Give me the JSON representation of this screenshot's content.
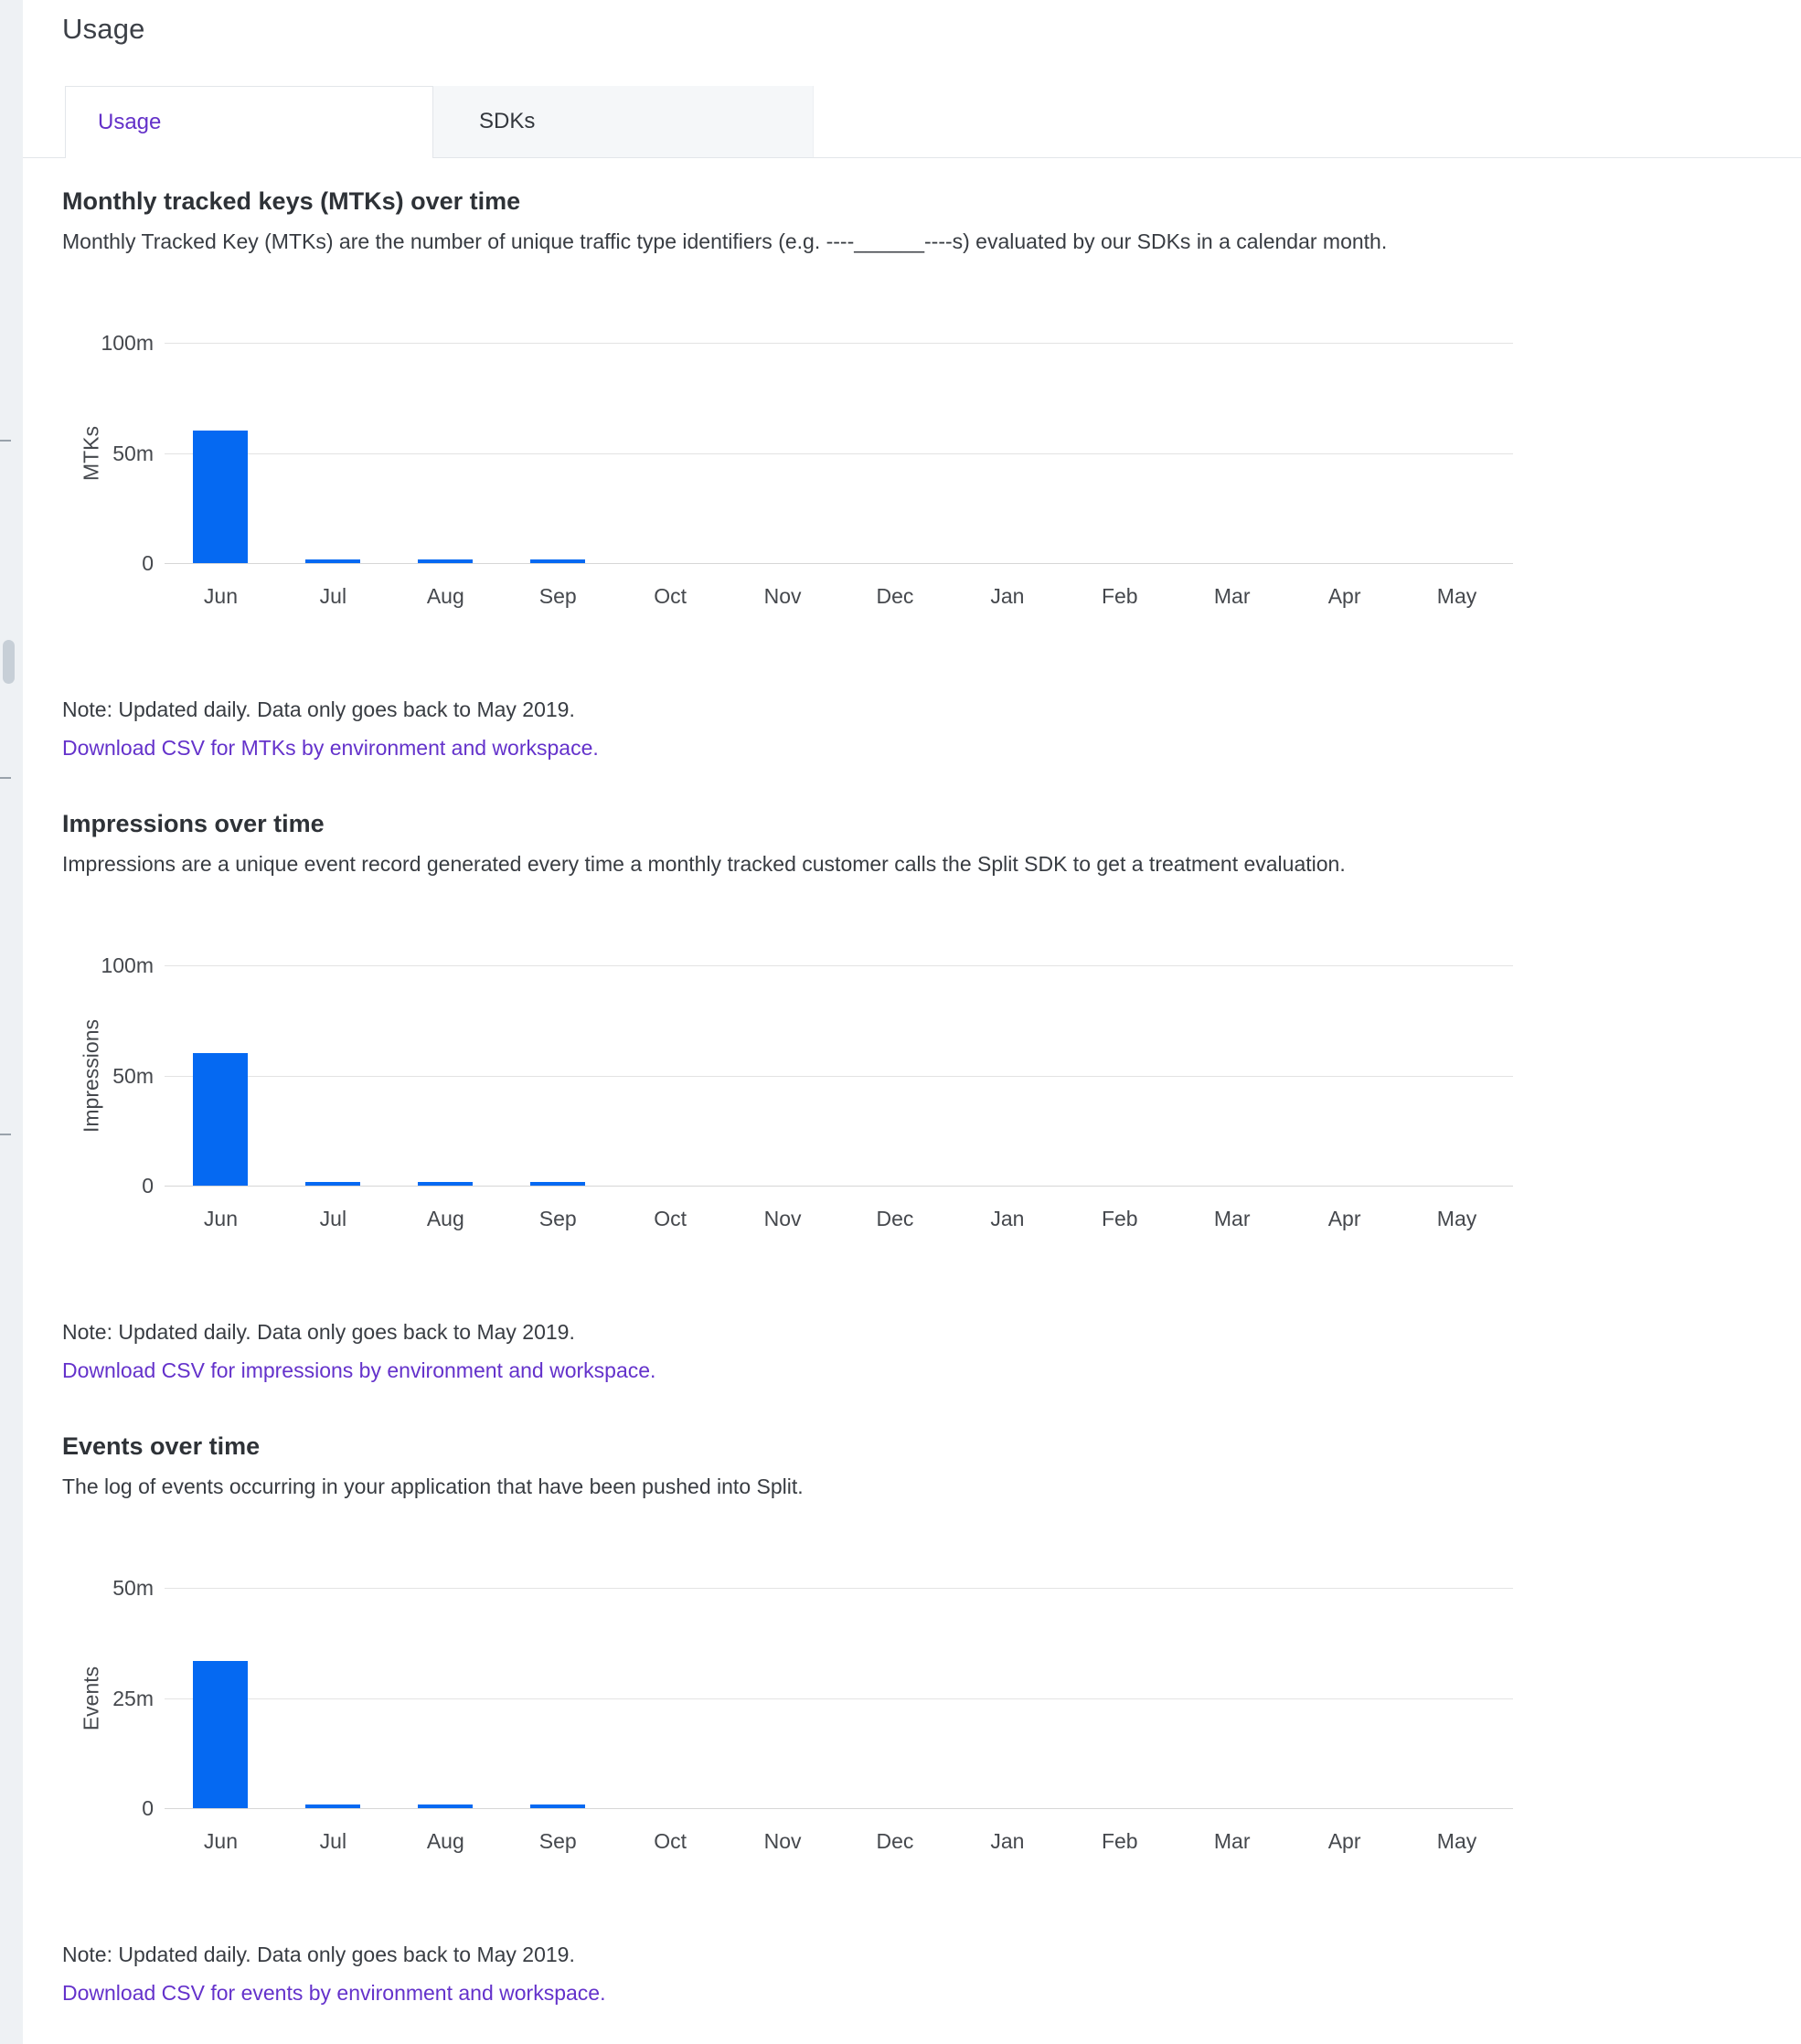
{
  "page": {
    "title": "Usage"
  },
  "tabs": [
    {
      "label": "Usage",
      "active": true
    },
    {
      "label": "SDKs",
      "active": false
    }
  ],
  "colors": {
    "bar_blue": "#0569f2",
    "accent_purple": "#6432cb",
    "active_tab_text": "#6431c9"
  },
  "sections": [
    {
      "heading": "Monthly tracked keys (MTKs) over time",
      "description": "Monthly Tracked Key (MTKs) are the number of unique traffic type identifiers (e.g. ----______----s) evaluated by our SDKs in a calendar month.",
      "note": "Note: Updated daily. Data only goes back to May 2019.",
      "link": "Download CSV for MTKs by environment and workspace."
    },
    {
      "heading": "Impressions over time",
      "description": "Impressions are a unique event record generated every time a monthly tracked customer calls the Split SDK to get a treatment evaluation.",
      "note": "Note: Updated daily. Data only goes back to May 2019.",
      "link": "Download CSV for impressions by environment and workspace."
    },
    {
      "heading": "Events over time",
      "description": "The log of events occurring in your application that have been pushed into Split.",
      "note": "Note: Updated daily. Data only goes back to May 2019.",
      "link": "Download CSV for events by environment and workspace."
    }
  ],
  "chart_data": [
    {
      "type": "bar",
      "title": "Monthly tracked keys (MTKs) over time",
      "ylabel": "MTKs",
      "xlabel": "",
      "units": "millions",
      "ymax": 100,
      "ylim": [
        0,
        100
      ],
      "grid": true,
      "yticks": [
        {
          "label": "100m",
          "value": 100
        },
        {
          "label": "50m",
          "value": 50
        },
        {
          "label": "0",
          "value": 0
        }
      ],
      "categories": [
        "Jun",
        "Jul",
        "Aug",
        "Sep",
        "Oct",
        "Nov",
        "Dec",
        "Jan",
        "Feb",
        "Mar",
        "Apr",
        "May"
      ],
      "values": [
        60,
        1.5,
        1.5,
        1.5,
        0,
        0,
        0,
        0,
        0,
        0,
        0,
        0
      ]
    },
    {
      "type": "bar",
      "title": "Impressions over time",
      "ylabel": "Impressions",
      "xlabel": "",
      "units": "millions",
      "ymax": 100,
      "ylim": [
        0,
        100
      ],
      "grid": true,
      "yticks": [
        {
          "label": "100m",
          "value": 100
        },
        {
          "label": "50m",
          "value": 50
        },
        {
          "label": "0",
          "value": 0
        }
      ],
      "categories": [
        "Jun",
        "Jul",
        "Aug",
        "Sep",
        "Oct",
        "Nov",
        "Dec",
        "Jan",
        "Feb",
        "Mar",
        "Apr",
        "May"
      ],
      "values": [
        60,
        1.5,
        1.5,
        1.5,
        0,
        0,
        0,
        0,
        0,
        0,
        0,
        0
      ]
    },
    {
      "type": "bar",
      "title": "Events over time",
      "ylabel": "Events",
      "xlabel": "",
      "units": "millions",
      "ymax": 50,
      "ylim": [
        0,
        50
      ],
      "grid": true,
      "yticks": [
        {
          "label": "50m",
          "value": 50
        },
        {
          "label": "25m",
          "value": 25
        },
        {
          "label": "0",
          "value": 0
        }
      ],
      "categories": [
        "Jun",
        "Jul",
        "Aug",
        "Sep",
        "Oct",
        "Nov",
        "Dec",
        "Jan",
        "Feb",
        "Mar",
        "Apr",
        "May"
      ],
      "values": [
        33.5,
        0.7,
        0.7,
        0.7,
        0,
        0,
        0,
        0,
        0,
        0,
        0,
        0
      ]
    }
  ]
}
